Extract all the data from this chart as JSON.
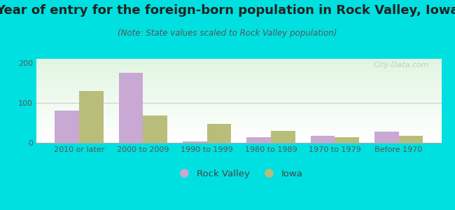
{
  "title": "Year of entry for the foreign-born population in Rock Valley, Iowa",
  "subtitle": "(Note: State values scaled to Rock Valley population)",
  "categories": [
    "2010 or later",
    "2000 to 2009",
    "1990 to 1999",
    "1980 to 1989",
    "1970 to 1979",
    "Before 1970"
  ],
  "rock_valley": [
    80,
    175,
    3,
    14,
    18,
    28
  ],
  "iowa": [
    130,
    68,
    48,
    30,
    14,
    18
  ],
  "bar_color_rv": "#c9a8d4",
  "bar_color_iowa": "#b8be7a",
  "background_outer": "#00e0e0",
  "ylim": [
    0,
    210
  ],
  "yticks": [
    0,
    100,
    200
  ],
  "legend_rv": "Rock Valley",
  "legend_iowa": "Iowa",
  "title_fontsize": 13,
  "subtitle_fontsize": 8.5,
  "tick_fontsize": 8,
  "legend_fontsize": 9.5,
  "bar_width": 0.38,
  "watermark": "City-Data.com"
}
